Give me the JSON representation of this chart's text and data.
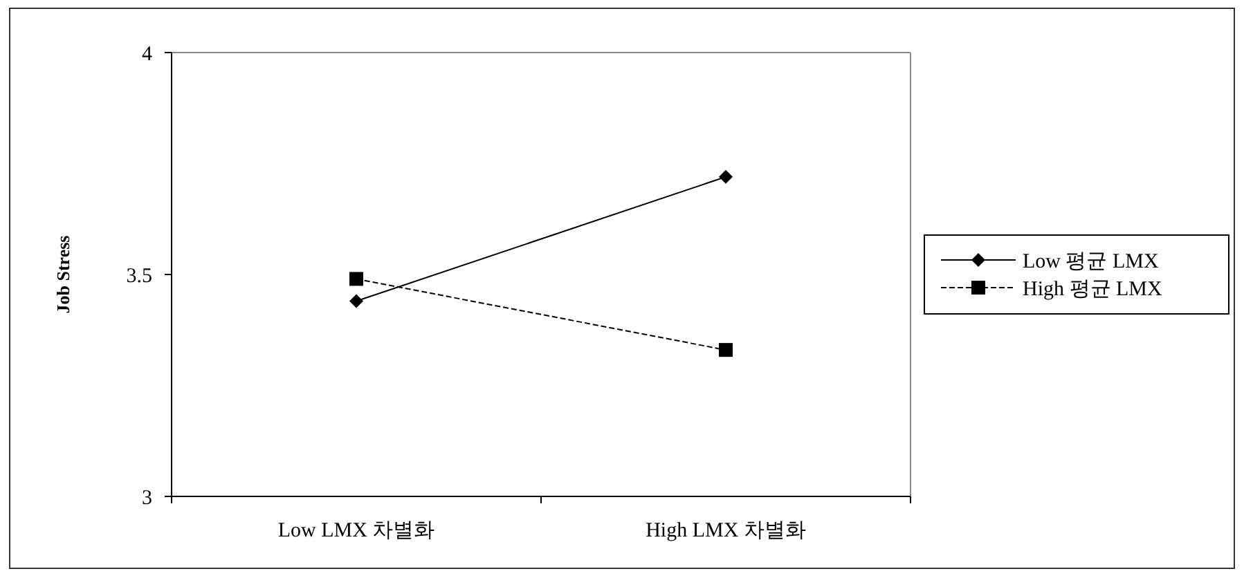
{
  "chart_data": {
    "type": "line",
    "ylabel": "Job Stress",
    "categories": [
      "Low LMX 차별화",
      "High LMX 차별화"
    ],
    "ylim": [
      3,
      4
    ],
    "yticks": [
      3,
      3.5,
      4
    ],
    "legend": "right",
    "grid": false,
    "series": [
      {
        "name": "Low 평균 LMX",
        "color": "#000000",
        "values": [
          3.44,
          3.72
        ],
        "marker": "diamond",
        "line_style": "solid"
      },
      {
        "name": "High 평균 LMX",
        "color": "#000000",
        "values": [
          3.49,
          3.33
        ],
        "marker": "square",
        "line_style": "dashed"
      }
    ]
  }
}
